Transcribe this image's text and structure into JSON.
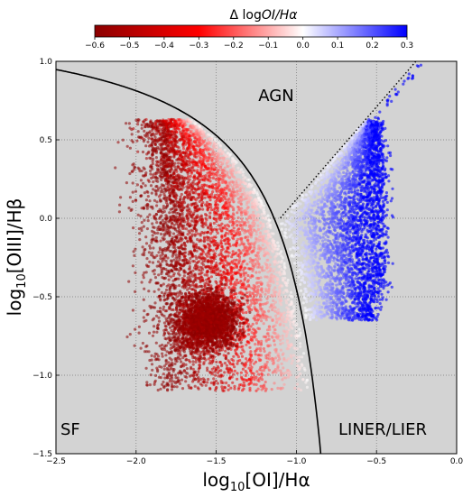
{
  "chart_data": {
    "type": "scatter",
    "xlabel_parts": [
      "log",
      "10",
      "[OI]/H",
      "α"
    ],
    "ylabel_parts": [
      "log",
      "10",
      "[OIII]/H",
      "β"
    ],
    "xlim": [
      -2.5,
      0.0
    ],
    "ylim": [
      -1.5,
      1.0
    ],
    "x_ticks": [
      -2.5,
      -2.0,
      -1.5,
      -1.0,
      -0.5,
      0.0
    ],
    "x_tick_labels": [
      "−2.5",
      "−2.0",
      "−1.5",
      "−1.0",
      "−0.5",
      "0.0"
    ],
    "y_ticks": [
      -1.5,
      -1.0,
      -0.5,
      0.0,
      0.5,
      1.0
    ],
    "y_tick_labels": [
      "−1.5",
      "−1.0",
      "−0.5",
      "0.0",
      "0.5",
      "1.0"
    ],
    "grid": true,
    "background": "#d3d3d3",
    "colorbar": {
      "title_prefix": "Δ log",
      "title_italic": "OI/Hα",
      "range": [
        -0.6,
        0.3
      ],
      "ticks": [
        -0.6,
        -0.5,
        -0.4,
        -0.3,
        -0.2,
        -0.1,
        0.0,
        0.1,
        0.2,
        0.3
      ],
      "tick_labels": [
        "−0.6",
        "−0.5",
        "−0.4",
        "−0.3",
        "−0.2",
        "−0.1",
        "0.0",
        "0.1",
        "0.2",
        "0.3"
      ],
      "colormap_stops": [
        "#8b0000",
        "#ff0000",
        "#ffffff",
        "#0000ff"
      ]
    },
    "regions": [
      "AGN",
      "SF",
      "LINER/LIER"
    ],
    "series": [
      {
        "x_range": [
          -2.25,
          -1.1
        ],
        "y_range": [
          -1.1,
          0.63
        ],
        "delta_range": [
          -0.6,
          0.0
        ]
      },
      {
        "x_range": [
          -1.1,
          -0.35
        ],
        "y_range": [
          -0.65,
          0.97
        ],
        "delta_range": [
          0.0,
          0.3
        ]
      }
    ],
    "curves": {
      "sf_demarcation": {
        "equation": "y = 0.73/(x + 0.59) + 1.33",
        "style": "solid",
        "color": "#000000"
      },
      "agn_liner_line": {
        "equation": "y = 1.18x + 1.30",
        "x_range": [
          -1.1,
          -0.25
        ],
        "style": "dotted",
        "color": "#000000"
      }
    }
  }
}
